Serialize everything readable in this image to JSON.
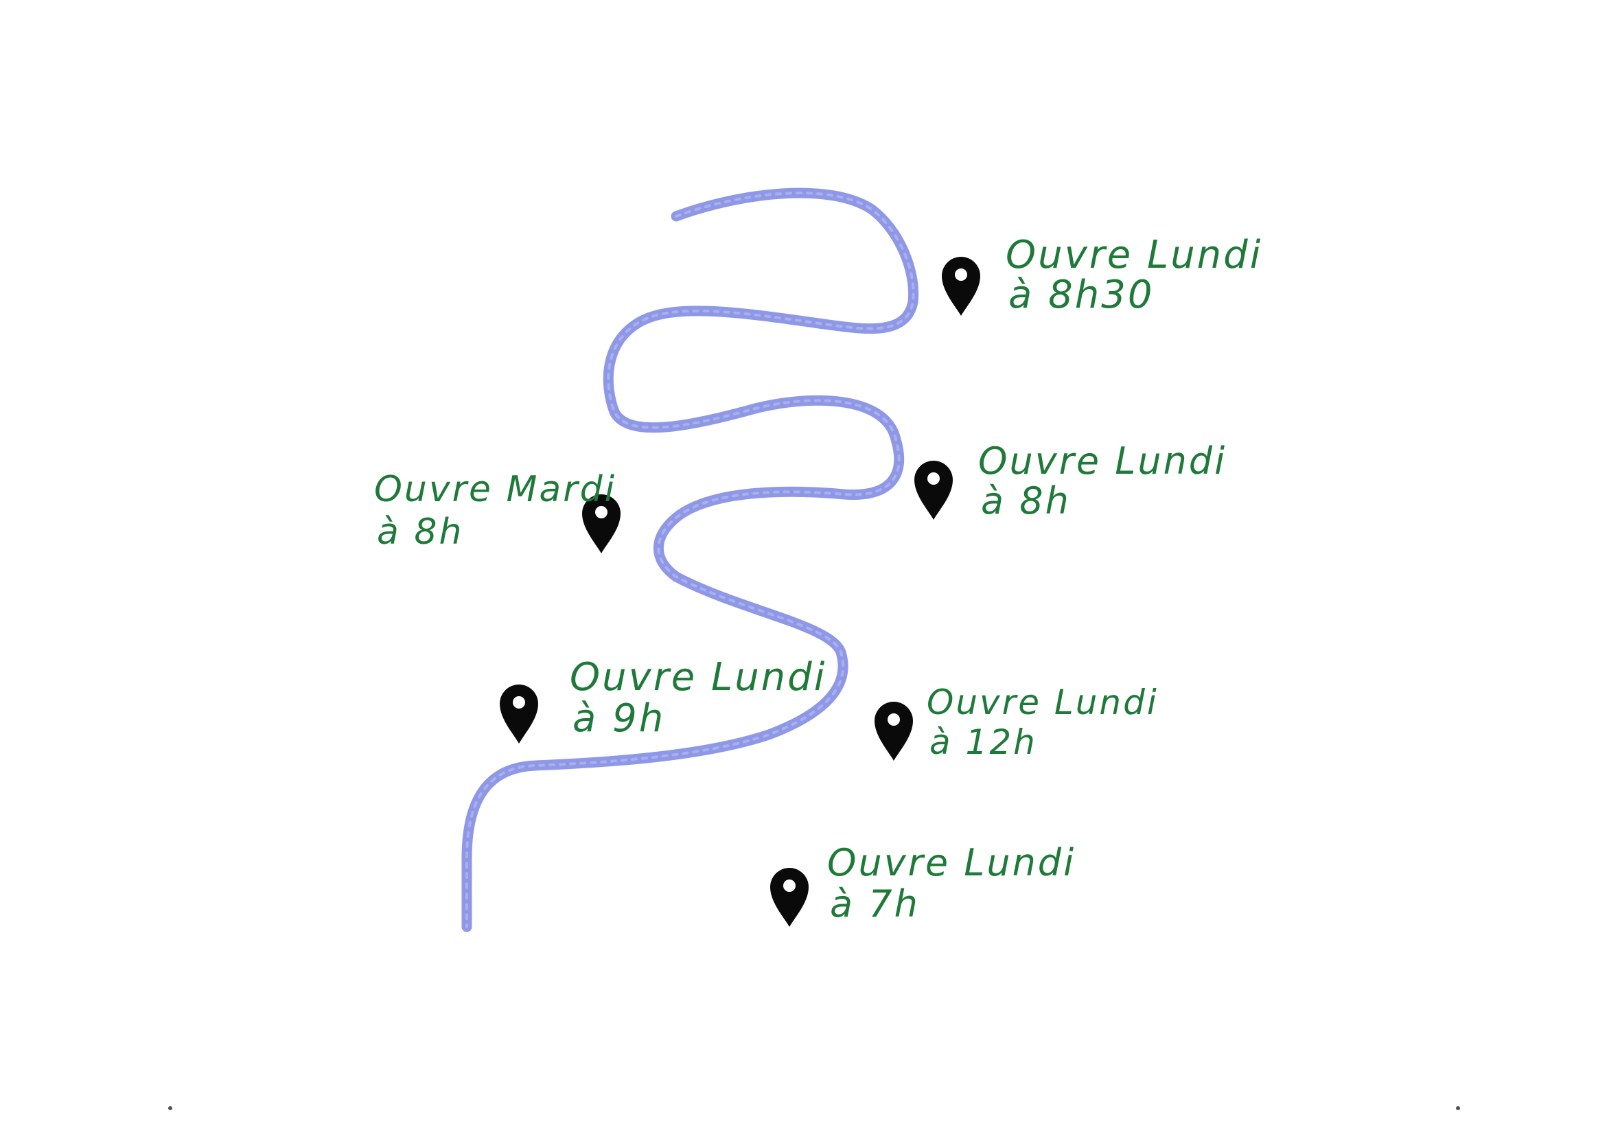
{
  "colors": {
    "river": "#8f98e6",
    "marker": "#0a0a0a",
    "marker_hole": "#ffffff",
    "annotation": "#1f7a3a",
    "background": "#ffffff"
  },
  "icons": {
    "marker": "map-pin-icon"
  },
  "river": {
    "name": ""
  },
  "places": [
    {
      "id": "place-1",
      "line1": "Ouvre Lundi",
      "line2": "à 8h30"
    },
    {
      "id": "place-2",
      "line1": "Ouvre Lundi",
      "line2": "à 8h"
    },
    {
      "id": "place-3",
      "line1": "Ouvre Mardi",
      "line2": "à 8h"
    },
    {
      "id": "place-4",
      "line1": "Ouvre Lundi",
      "line2": "à 9h"
    },
    {
      "id": "place-5",
      "line1": "Ouvre Lundi",
      "line2": "à 12h"
    },
    {
      "id": "place-6",
      "line1": "Ouvre Lundi",
      "line2": "à 7h"
    }
  ]
}
